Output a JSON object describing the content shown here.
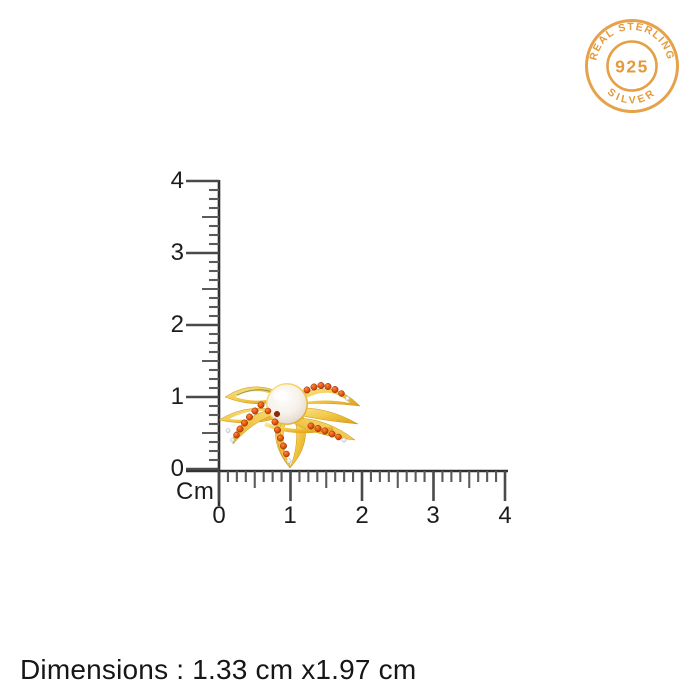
{
  "badge": {
    "top_text": "REAL STERLING",
    "center_text": "925",
    "bottom_text": "SILVER",
    "color": "#E49A3C"
  },
  "ruler": {
    "unit_label": "Cm",
    "vertical_labels": [
      "4",
      "3",
      "2",
      "1",
      "0"
    ],
    "horizontal_labels": [
      "0",
      "1",
      "2",
      "3",
      "4"
    ],
    "tick_color": "#4a4a4a"
  },
  "product": {
    "name": "gold pearl flower stud with orange gemstones",
    "gold_color": "#F3C844",
    "gem_color": "#E65510",
    "pearl_color": "#F6F1EA"
  },
  "footer": {
    "dimensions_text": "Dimensions : 1.33 cm x1.97  cm"
  }
}
